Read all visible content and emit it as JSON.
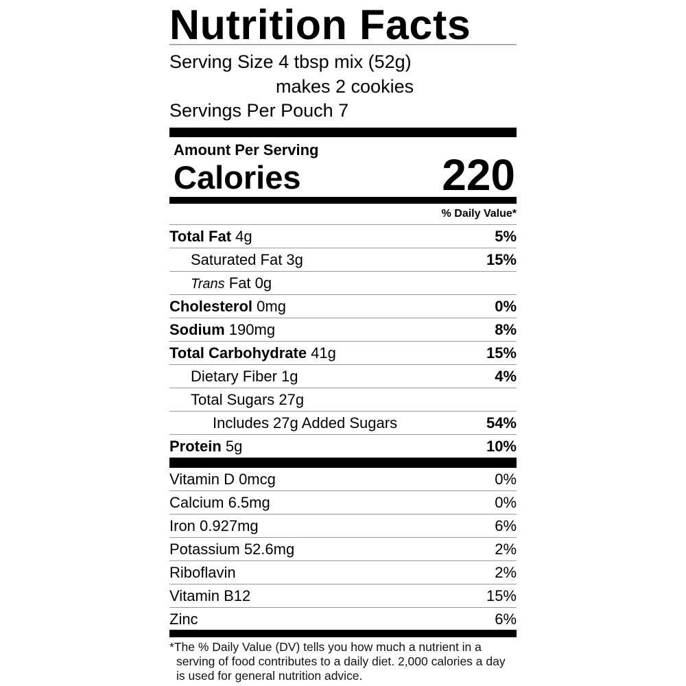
{
  "title": "Nutrition Facts",
  "serving_size": "Serving Size 4 tbsp mix (52g)",
  "serving_note": "makes 2 cookies",
  "servings_per": "Servings Per Pouch 7",
  "amount_per_serving": "Amount Per Serving",
  "calories_label": "Calories",
  "calories_value": "220",
  "daily_value_header": "% Daily Value*",
  "nutrients": [
    {
      "name": "Total Fat",
      "amount": " 4g",
      "dv": "5%"
    },
    {
      "name": "Saturated Fat 3g",
      "amount": "",
      "dv": "15%"
    },
    {
      "name": "Trans",
      "amount": " Fat 0g",
      "dv": ""
    },
    {
      "name": "Cholesterol",
      "amount": " 0mg",
      "dv": "0%"
    },
    {
      "name": "Sodium",
      "amount": " 190mg",
      "dv": "8%"
    },
    {
      "name": "Total Carbohydrate",
      "amount": " 41g",
      "dv": "15%"
    },
    {
      "name": "Dietary Fiber 1g",
      "amount": "",
      "dv": "4%"
    },
    {
      "name": "Total Sugars 27g",
      "amount": "",
      "dv": ""
    },
    {
      "name": "Includes 27g Added Sugars",
      "amount": "",
      "dv": "54%"
    },
    {
      "name": "Protein",
      "amount": " 5g",
      "dv": "10%"
    }
  ],
  "vitamins": [
    {
      "name": "Vitamin D 0mcg",
      "dv": "0%"
    },
    {
      "name": "Calcium 6.5mg",
      "dv": "0%"
    },
    {
      "name": "Iron 0.927mg",
      "dv": "6%"
    },
    {
      "name": "Potassium 52.6mg",
      "dv": "2%"
    },
    {
      "name": "Riboflavin",
      "dv": "2%"
    },
    {
      "name": "Vitamin B12",
      "dv": "15%"
    },
    {
      "name": "Zinc",
      "dv": "6%"
    }
  ],
  "footnote": "*The % Daily Value (DV) tells you how much a nutrient in a serving of food contributes to a daily diet. 2,000 calories a day is used for general nutrition advice."
}
